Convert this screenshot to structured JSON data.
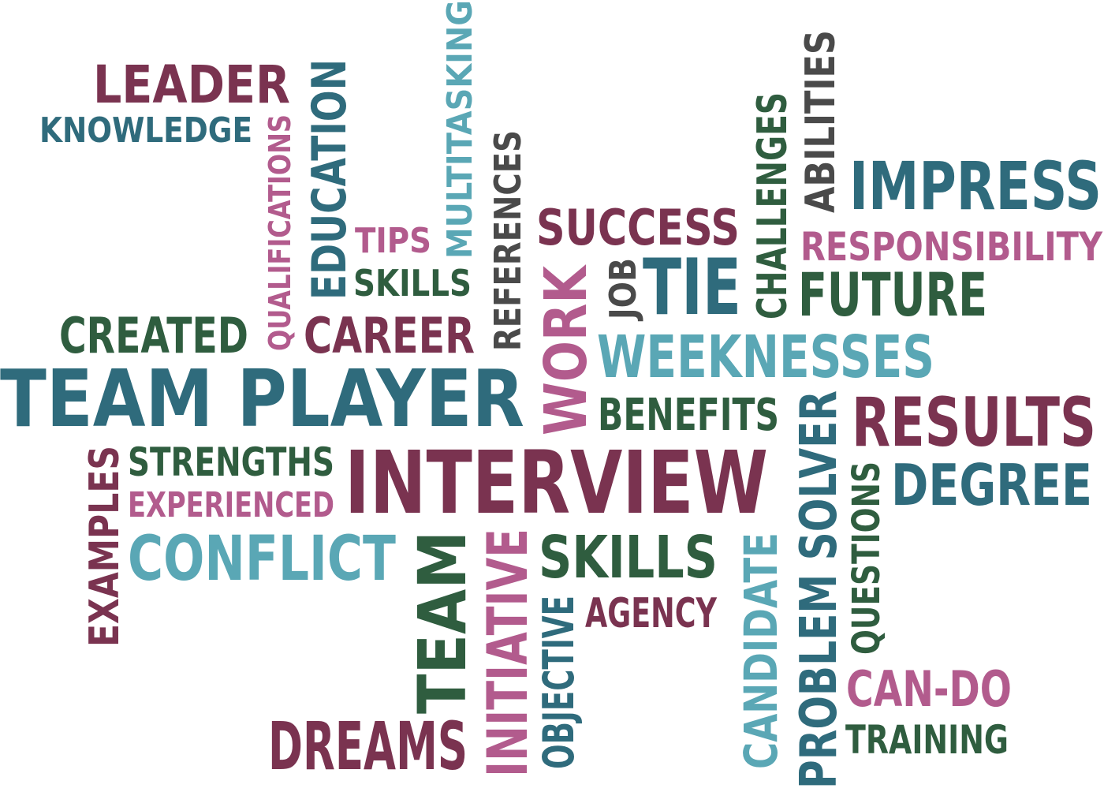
{
  "palette": {
    "maroon": "#7a3350",
    "teal": "#2f6b7c",
    "light_teal": "#5aa7b5",
    "pink": "#b25b8d",
    "green": "#2f5d3f",
    "gray": "#4a4a4a"
  },
  "words": [
    {
      "key": "leader",
      "text": "LEADER",
      "color": "maroon"
    },
    {
      "key": "knowledge",
      "text": "KNOWLEDGE",
      "color": "teal"
    },
    {
      "key": "qualifications",
      "text": "QUALIFICATIONS",
      "color": "pink"
    },
    {
      "key": "education",
      "text": "EDUCATION",
      "color": "teal"
    },
    {
      "key": "multitasking",
      "text": "MULTITASKING",
      "color": "light_teal"
    },
    {
      "key": "references",
      "text": "REFERENCES",
      "color": "gray"
    },
    {
      "key": "tips",
      "text": "TIPS",
      "color": "pink"
    },
    {
      "key": "skills_small",
      "text": "SKILLS",
      "color": "green"
    },
    {
      "key": "created",
      "text": "CREATED",
      "color": "green"
    },
    {
      "key": "career",
      "text": "CAREER",
      "color": "maroon"
    },
    {
      "key": "team_player",
      "text": "TEAM PLAYER",
      "color": "teal"
    },
    {
      "key": "work",
      "text": "WORK",
      "color": "pink"
    },
    {
      "key": "success",
      "text": "SUCCESS",
      "color": "maroon"
    },
    {
      "key": "job",
      "text": "JOB",
      "color": "gray"
    },
    {
      "key": "tie",
      "text": "TIE",
      "color": "teal"
    },
    {
      "key": "challenges",
      "text": "CHALLENGES",
      "color": "green"
    },
    {
      "key": "abilities",
      "text": "ABILITIES",
      "color": "gray"
    },
    {
      "key": "impress",
      "text": "IMPRESS",
      "color": "teal"
    },
    {
      "key": "responsibility",
      "text": "RESPONSIBILITY",
      "color": "pink"
    },
    {
      "key": "future",
      "text": "FUTURE",
      "color": "green"
    },
    {
      "key": "weeknesses",
      "text": "WEEKNESSES",
      "color": "light_teal"
    },
    {
      "key": "benefits",
      "text": "BENEFITS",
      "color": "green"
    },
    {
      "key": "results",
      "text": "RESULTS",
      "color": "maroon"
    },
    {
      "key": "strengths",
      "text": "STRENGTHS",
      "color": "green"
    },
    {
      "key": "experienced",
      "text": "EXPERIENCED",
      "color": "pink"
    },
    {
      "key": "examples",
      "text": "EXAMPLES",
      "color": "maroon"
    },
    {
      "key": "interview",
      "text": "INTERVIEW",
      "color": "maroon"
    },
    {
      "key": "conflict",
      "text": "CONFLICT",
      "color": "light_teal"
    },
    {
      "key": "team",
      "text": "TEAM",
      "color": "green"
    },
    {
      "key": "initiative",
      "text": "INITIATIVE",
      "color": "pink"
    },
    {
      "key": "skills_large",
      "text": "SKILLS",
      "color": "green"
    },
    {
      "key": "objective",
      "text": "OBJECTIVE",
      "color": "teal"
    },
    {
      "key": "agency",
      "text": "AGENCY",
      "color": "maroon"
    },
    {
      "key": "candidate",
      "text": "CANDIDATE",
      "color": "light_teal"
    },
    {
      "key": "problem_solver",
      "text": "PROBLEM SOLVER",
      "color": "teal"
    },
    {
      "key": "questions",
      "text": "QUESTIONS",
      "color": "green"
    },
    {
      "key": "degree",
      "text": "DEGREE",
      "color": "teal"
    },
    {
      "key": "can_do",
      "text": "CAN-DO",
      "color": "pink"
    },
    {
      "key": "training",
      "text": "TRAINING",
      "color": "green"
    },
    {
      "key": "dreams",
      "text": "DREAMS",
      "color": "maroon"
    }
  ]
}
